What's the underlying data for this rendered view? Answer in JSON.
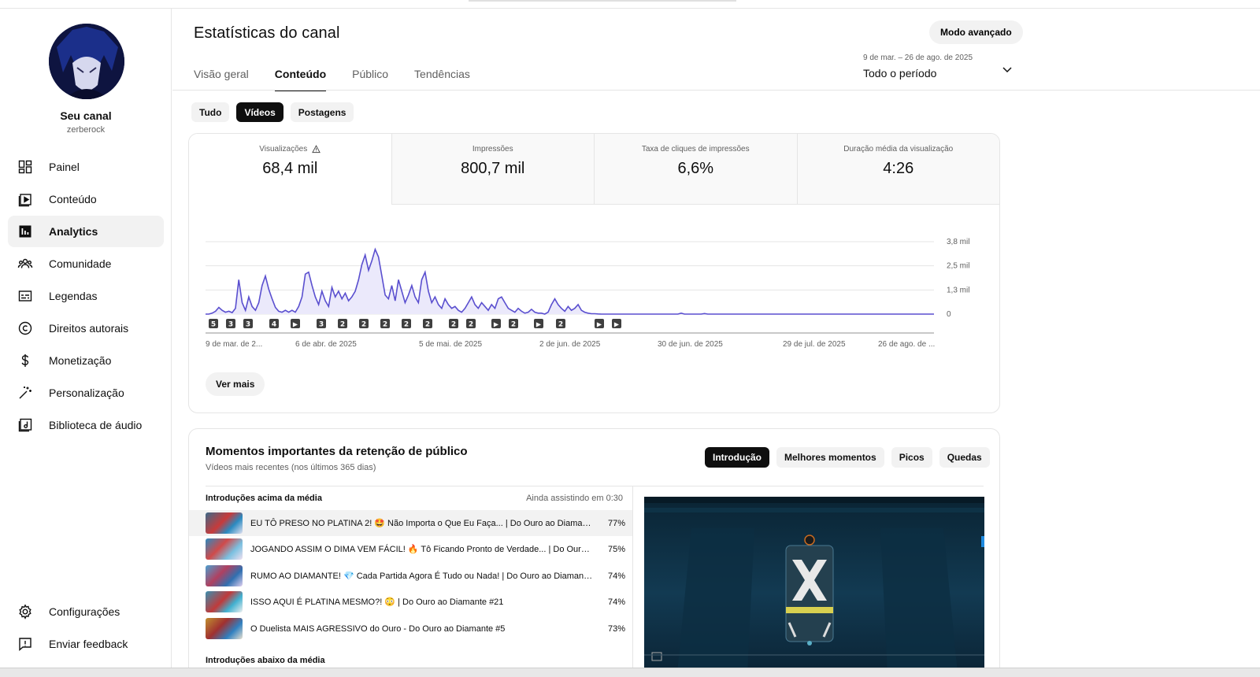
{
  "sidebar": {
    "channel_title": "Seu canal",
    "channel_handle": "zerberock",
    "items": [
      {
        "label": "Painel",
        "icon": "dashboard-icon"
      },
      {
        "label": "Conteúdo",
        "icon": "content-icon"
      },
      {
        "label": "Analytics",
        "icon": "analytics-icon",
        "active": true
      },
      {
        "label": "Comunidade",
        "icon": "community-icon"
      },
      {
        "label": "Legendas",
        "icon": "subtitles-icon"
      },
      {
        "label": "Direitos autorais",
        "icon": "copyright-icon"
      },
      {
        "label": "Monetização",
        "icon": "dollar-icon"
      },
      {
        "label": "Personalização",
        "icon": "magic-wand-icon"
      },
      {
        "label": "Biblioteca de áudio",
        "icon": "audio-library-icon"
      }
    ],
    "bottom_items": [
      {
        "label": "Configurações",
        "icon": "gear-icon"
      },
      {
        "label": "Enviar feedback",
        "icon": "feedback-icon"
      }
    ]
  },
  "header": {
    "title": "Estatísticas do canal",
    "advanced_button": "Modo avançado",
    "tabs": [
      "Visão geral",
      "Conteúdo",
      "Público",
      "Tendências"
    ],
    "active_tab": "Conteúdo",
    "date_range": "9 de mar. – 26 de ago. de 2025",
    "period": "Todo o período"
  },
  "content_chips": [
    "Tudo",
    "Vídeos",
    "Postagens"
  ],
  "active_chip": "Vídeos",
  "metrics": [
    {
      "label": "Visualizações",
      "value": "68,4 mil",
      "warning": true
    },
    {
      "label": "Impressões",
      "value": "800,7 mil"
    },
    {
      "label": "Taxa de cliques de impressões",
      "value": "6,6%"
    },
    {
      "label": "Duração média da visualização",
      "value": "4:26"
    }
  ],
  "chart_data": {
    "type": "area",
    "series": [
      {
        "values": [
          0,
          0,
          0.05,
          0.15,
          0.35,
          0.2,
          0.1,
          0.15,
          0.08,
          0.3,
          1.8,
          0.6,
          0.2,
          0.9,
          0.4,
          0.2,
          0.6,
          1.5,
          2.0,
          1.3,
          0.8,
          0.35,
          0.15,
          0.1,
          0.2,
          0.1,
          0.2,
          0.1,
          0.4,
          0.9,
          2.1,
          2.2,
          1.5,
          0.9,
          0.5,
          1.2,
          0.7,
          0.4,
          1.4,
          0.9,
          1.2,
          0.8,
          1.1,
          0.7,
          0.9,
          1.2,
          1.8,
          2.6,
          3.1,
          2.3,
          2.8,
          3.4,
          3.0,
          2.0,
          1.0,
          0.8,
          1.5,
          0.7,
          1.8,
          1.2,
          0.6,
          1.0,
          1.5,
          0.9,
          0.6,
          1.8,
          2.2,
          1.2,
          0.6,
          0.9,
          0.5,
          0.3,
          0.8,
          0.5,
          0.3,
          0.4,
          0.2,
          0.1,
          0.3,
          0.6,
          0.9,
          0.5,
          0.3,
          0.6,
          0.4,
          0.2,
          0.5,
          0.3,
          0.8,
          0.9,
          0.6,
          0.3,
          0.2,
          0.1,
          0.3,
          0.15,
          0.05,
          0.1,
          0.25,
          0.1,
          0.05,
          0.05,
          0,
          0.1,
          0.5,
          0.8,
          0.5,
          0.3,
          0.15,
          0.4,
          0.2,
          0.3,
          0.5,
          0.2,
          0.1,
          0.05,
          0.02,
          0.02,
          0.01,
          0,
          0,
          0,
          0,
          0,
          0,
          0,
          0,
          0,
          0,
          0,
          0,
          0,
          0,
          0,
          0,
          0,
          0,
          0,
          0,
          0,
          0,
          0,
          0,
          0.05,
          0,
          0,
          0,
          0,
          0,
          0,
          0.03,
          0,
          0,
          0,
          0,
          0,
          0,
          0,
          0,
          0,
          0,
          0,
          0,
          0,
          0,
          0,
          0,
          0,
          0,
          0,
          0,
          0,
          0,
          0,
          0,
          0,
          0,
          0,
          0,
          0,
          0,
          0,
          0,
          0,
          0,
          0,
          0,
          0,
          0,
          0,
          0,
          0,
          0,
          0,
          0,
          0,
          0,
          0,
          0,
          0,
          0,
          0,
          0,
          0,
          0,
          0,
          0,
          0,
          0,
          0,
          0,
          0,
          0,
          0,
          0,
          0,
          0,
          0,
          0,
          0
        ]
      }
    ],
    "y_ticks": [
      "3,8 mil",
      "2,5 mil",
      "1,3 mil",
      "0"
    ],
    "ylim": [
      0,
      3.8
    ],
    "x_ticks": [
      "9 de mar. de 2...",
      "6 de abr. de 2025",
      "5 de mai. de 2025",
      "2 de jun. de 2025",
      "30 de jun. de 2025",
      "29 de jul. de 2025",
      "26 de ago. de ..."
    ],
    "markers": [
      "5",
      "3",
      "3",
      "4",
      "▶",
      "3",
      "2",
      "2",
      "2",
      "2",
      "2",
      "2",
      "2",
      "▶",
      "2",
      "▶",
      "2",
      "▶",
      "▶"
    ],
    "line_color": "#5a4fcf",
    "fill_color": "#ebe9fb",
    "grid": true
  },
  "see_more": "Ver mais",
  "retention": {
    "title": "Momentos importantes da retenção de público",
    "subtitle": "Vídeos mais recentes (nos últimos 365 dias)",
    "chips": [
      "Introdução",
      "Melhores momentos",
      "Picos",
      "Quedas"
    ],
    "active_chip": "Introdução",
    "above_header": "Introduções acima da média",
    "still_watching": "Ainda assistindo em 0:30",
    "videos": [
      {
        "title": "EU TÔ PRESO NO PLATINA 2! 🤩 Não Importa o Que Eu Faça... | Do Ouro ao Diamante #...",
        "pct": "77%"
      },
      {
        "title": "JOGANDO ASSIM O DIMA VEM FÁCIL! 🔥 Tô Ficando Pronto de Verdade... | Do Ouro ao ...",
        "pct": "75%"
      },
      {
        "title": "RUMO AO DIAMANTE! 💎 Cada Partida Agora É Tudo ou Nada! | Do Ouro ao Diamante #...",
        "pct": "74%"
      },
      {
        "title": "ISSO AQUI É PLATINA MESMO?! 😳 | Do Ouro ao Diamante #21",
        "pct": "74%"
      },
      {
        "title": "O Duelista MAIS AGRESSIVO do Ouro - Do Ouro ao Diamante #5",
        "pct": "73%"
      }
    ],
    "below_header": "Introduções abaixo da média"
  }
}
